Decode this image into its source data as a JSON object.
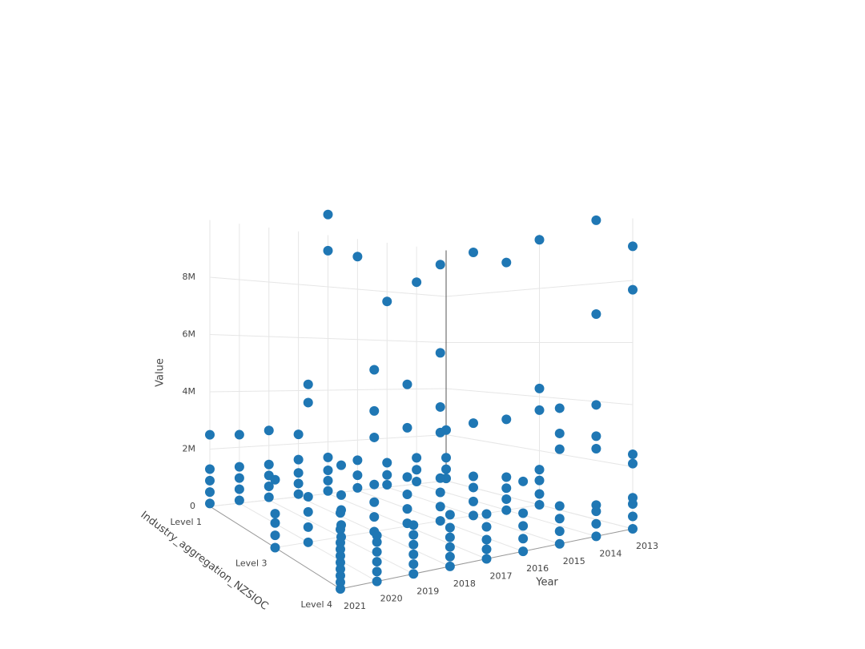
{
  "chart_data": {
    "type": "scatter3d",
    "x_title": "Year",
    "y_title": "Industry_aggregation_NZSIOC",
    "z_title": "Value",
    "color": "#1f77b4",
    "xlim": [
      2013,
      2021
    ],
    "xticks": [
      2013,
      2014,
      2015,
      2016,
      2017,
      2018,
      2019,
      2020,
      2021
    ],
    "x": [
      2013,
      2014,
      2015,
      2016,
      2017,
      2018,
      2019,
      2020,
      2021
    ],
    "y": [
      "Level 1",
      "Level 3",
      "Level 4"
    ],
    "zlim": [
      0,
      10000000
    ],
    "zticks": [
      0,
      {
        "value": 2000000,
        "label": "2M"
      },
      {
        "value": 4000000,
        "label": "4M"
      },
      {
        "value": 6000000,
        "label": "6M"
      },
      {
        "value": 8000000,
        "label": "8M"
      }
    ],
    "z": [
      [
        [
          100000,
          500000,
          1000000,
          2200000
        ],
        [
          100000,
          600000,
          1100000,
          8500000
        ],
        [
          100000,
          500000,
          1000000,
          7600000
        ],
        [
          100000,
          600000,
          1200000,
          9300000
        ],
        [
          100000,
          500000,
          900000,
          1400000,
          10800000,
          9400000
        ],
        [
          100000,
          500000,
          900000,
          1400000,
          2350000
        ],
        [
          100000,
          500000,
          900000,
          1300000,
          2550000
        ],
        [
          100000,
          500000,
          900000,
          1300000,
          2450000
        ],
        [
          100000,
          500000,
          900000,
          1300000,
          2500000
        ]
      ],
      [
        [
          0,
          400000,
          900000,
          1300000,
          4300000,
          3500000,
          9800000
        ],
        [
          0,
          400000,
          800000,
          1200000,
          3300000,
          9000000
        ],
        [
          0,
          500000,
          1000000,
          1400000,
          3300000,
          9400000
        ],
        [
          0,
          500000,
          1000000,
          1500000,
          5900000,
          4000000,
          3100000,
          9000000
        ],
        [
          100000,
          600000,
          1100000,
          1700000,
          4900000,
          3400000
        ],
        [
          0,
          500000,
          1000000,
          1600000,
          5500000,
          4100000,
          3200000
        ],
        [
          0,
          400000,
          900000,
          1400000,
          2400000
        ],
        [
          0,
          500000,
          1000000,
          1500000,
          5200000,
          4600000
        ],
        [
          0,
          400000,
          800000,
          1100000,
          2200000
        ]
      ],
      [
        [
          0,
          400000,
          800000,
          1000000,
          2100000,
          2400000,
          7700000,
          9100000
        ],
        [
          0,
          400000,
          800000,
          1000000,
          2800000,
          3200000,
          4200000,
          7100000,
          10100000
        ],
        [
          0,
          400000,
          800000,
          1200000,
          3000000,
          3500000,
          4300000
        ],
        [
          0,
          400000,
          800000,
          1200000,
          2200000
        ],
        [
          0,
          300000,
          600000,
          1000000,
          1400000
        ],
        [
          0,
          300000,
          600000,
          900000,
          1200000,
          1600000
        ],
        [
          0,
          300000,
          600000,
          900000,
          1200000,
          1500000
        ],
        [
          0,
          300000,
          600000,
          900000,
          1200000,
          1400000
        ],
        [
          0,
          200000,
          400000,
          600000,
          800000,
          1000000,
          1200000,
          1400000,
          1800000,
          2300000
        ]
      ]
    ]
  }
}
